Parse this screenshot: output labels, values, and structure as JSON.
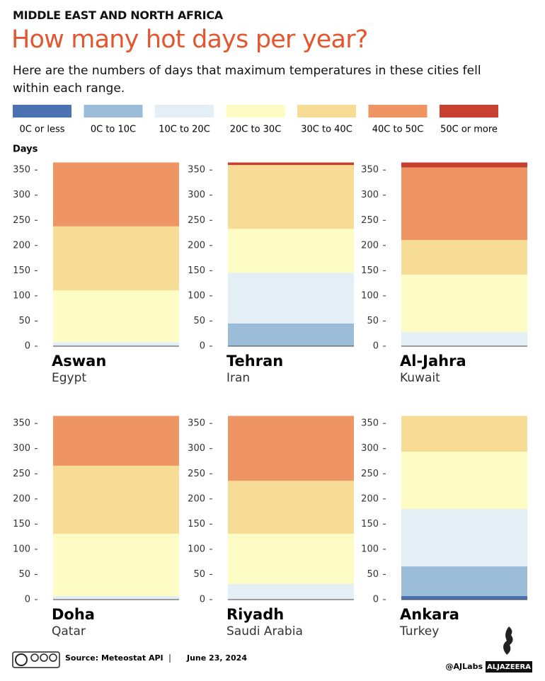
{
  "chart_data": {
    "type": "stacked_bar",
    "kicker": "MIDDLE EAST AND NORTH AFRICA",
    "title": "How many hot days per year?",
    "subtitle": "Here are the numbers of days that maximum temperatures in these cities fell within each range.",
    "y_label": "Days",
    "categories": [
      "Aswan",
      "Tehran",
      "Al-Jahra",
      "Doha",
      "Riyadh",
      "Ankara"
    ],
    "countries": [
      "Egypt",
      "Iran",
      "Kuwait",
      "Qatar",
      "Saudi Arabia",
      "Turkey"
    ],
    "series": [
      {
        "name": "0C or less",
        "color": "#4a72b0",
        "values": [
          0,
          0,
          0,
          0,
          0,
          7
        ]
      },
      {
        "name": "0C to 10C",
        "color": "#9bbdd9",
        "values": [
          0,
          45,
          0,
          0,
          0,
          59
        ]
      },
      {
        "name": "10C to 20C",
        "color": "#e3eef5",
        "values": [
          8,
          101,
          28,
          7,
          31,
          114
        ]
      },
      {
        "name": "20C to 30C",
        "color": "#fdfcc4",
        "values": [
          103,
          87,
          114,
          124,
          100,
          114
        ]
      },
      {
        "name": "30C to 40C",
        "color": "#f7dc95",
        "values": [
          127,
          127,
          69,
          135,
          105,
          71
        ]
      },
      {
        "name": "40C to 50C",
        "color": "#ee9563",
        "values": [
          127,
          0,
          144,
          99,
          129,
          0
        ]
      },
      {
        "name": "50C or more",
        "color": "#c8402f",
        "values": [
          0,
          5,
          10,
          0,
          0,
          0
        ]
      }
    ],
    "ylim": [
      0,
      365
    ],
    "yticks": [
      0,
      50,
      100,
      150,
      200,
      250,
      300,
      350
    ]
  },
  "footer": {
    "source": "Source:  Meteostat API",
    "date": "June 23, 2024",
    "handle": "@AJLabs",
    "brand": "ALJAZEERA"
  }
}
